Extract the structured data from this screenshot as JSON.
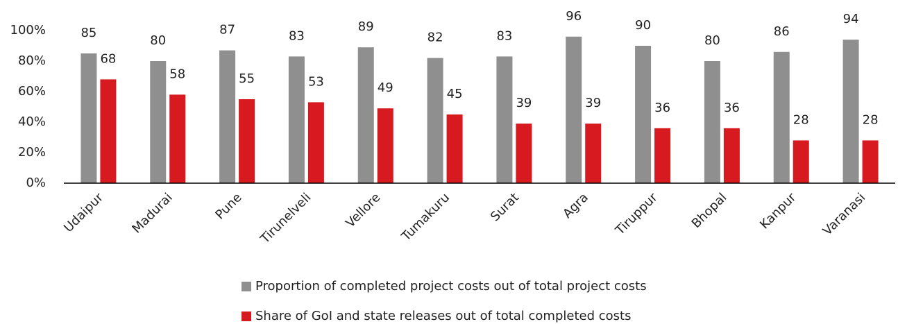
{
  "chart_data": {
    "type": "bar",
    "categories": [
      "Udaipur",
      "Madurai",
      "Pune",
      "Tirunelveli",
      "Vellore",
      "Tumakuru",
      "Surat",
      "Agra",
      "Tiruppur",
      "Bhopal",
      "Kanpur",
      "Varanasi"
    ],
    "series": [
      {
        "name": "Proportion of completed project costs out of total project costs",
        "color": "#8f8f8f",
        "values": [
          85,
          80,
          87,
          83,
          89,
          82,
          83,
          96,
          90,
          80,
          86,
          94
        ]
      },
      {
        "name": "Share of GoI and state releases out of total completed costs",
        "color": "#d71920",
        "values": [
          68,
          58,
          55,
          53,
          49,
          45,
          39,
          39,
          36,
          36,
          28,
          28
        ]
      }
    ],
    "ylim": [
      0,
      100
    ],
    "yticks": [
      {
        "value": 0,
        "label": "0%"
      },
      {
        "value": 20,
        "label": "20%"
      },
      {
        "value": 40,
        "label": "40%"
      },
      {
        "value": 60,
        "label": "60%"
      },
      {
        "value": 80,
        "label": "80%"
      },
      {
        "value": 100,
        "label": "100%"
      }
    ],
    "grid": false,
    "legend": "bottom"
  }
}
